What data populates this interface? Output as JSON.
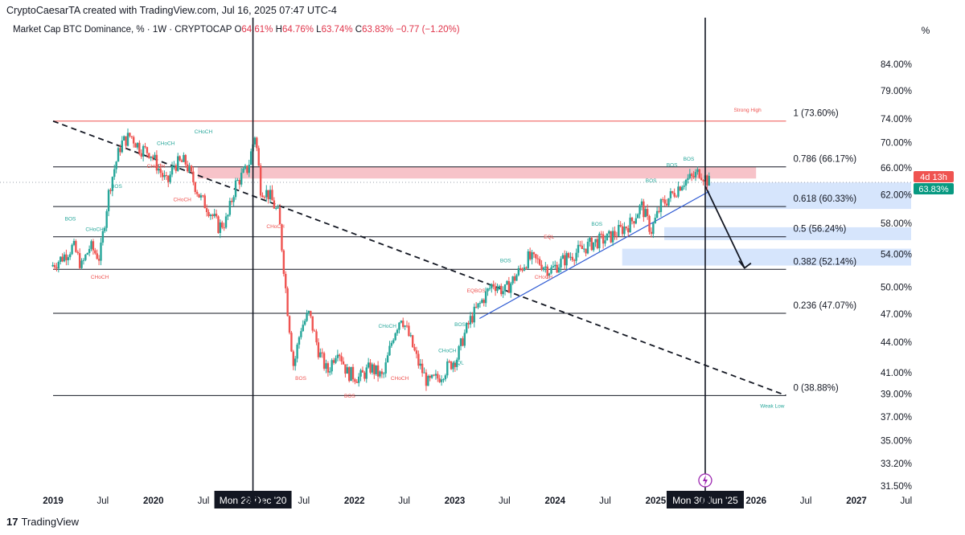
{
  "header": {
    "attribution": "CryptoCaesarTA created with TradingView.com, Jul 16, 2025 07:47 UTC-4",
    "symbol_text": "Market Cap BTC Dominance, % · 1W · CRYPTOCAP",
    "o_label": "O",
    "o_value": "64.61%",
    "h_label": "H",
    "h_value": "64.76%",
    "l_label": "L",
    "l_value": "63.74%",
    "c_label": "C",
    "c_value": "63.83%",
    "change": "−0.77 (−1.20%)",
    "scale_mode": "%"
  },
  "footer": {
    "brand": "TradingView",
    "logo_glyph": "17"
  },
  "colors": {
    "up": "#26a69a",
    "down": "#ef5350",
    "fib": "#131722",
    "strong_high": "#ef5350",
    "zone_red": "#f6b9bf",
    "zone_blue": "#cfe0fb"
  },
  "chart_data": {
    "type": "candlestick",
    "title": "Market Cap BTC Dominance, % · 1W · CRYPTOCAP",
    "y_scale": "log",
    "y_ticks": [
      "84.00%",
      "79.00%",
      "74.00%",
      "70.00%",
      "66.00%",
      "62.00%",
      "58.00%",
      "54.00%",
      "50.00%",
      "47.00%",
      "44.00%",
      "41.00%",
      "39.00%",
      "37.00%",
      "35.00%",
      "33.20%",
      "31.50%"
    ],
    "y_tick_values": [
      84,
      79,
      74,
      70,
      66,
      62,
      58,
      54,
      50,
      47,
      44,
      41,
      39,
      37,
      35,
      33.2,
      31.5
    ],
    "x_ticks": [
      "2019",
      "Jul",
      "2020",
      "Jul",
      "2021",
      "Jul",
      "2022",
      "Jul",
      "2023",
      "Jul",
      "2024",
      "Jul",
      "2025",
      "Jul",
      "2026",
      "Jul",
      "2027",
      "Jul"
    ],
    "x_tick_dates": [
      "2019-01-01",
      "2019-07-01",
      "2020-01-01",
      "2020-07-01",
      "2021-01-01",
      "2021-07-01",
      "2022-01-01",
      "2022-07-01",
      "2023-01-01",
      "2023-07-01",
      "2024-01-01",
      "2024-07-01",
      "2025-01-01",
      "2025-07-01",
      "2026-01-01",
      "2026-07-01",
      "2027-01-01",
      "2027-07-01"
    ],
    "x_tick_bold": [
      true,
      false,
      true,
      false,
      true,
      false,
      true,
      false,
      true,
      false,
      true,
      false,
      true,
      false,
      true,
      false,
      true,
      false
    ],
    "crosshair_labels": [
      {
        "text": "Mon 28 Dec '20",
        "date": "2020-12-28"
      },
      {
        "text": "Mon 30 Jun '25",
        "date": "2025-06-30"
      }
    ],
    "price_labels": {
      "countdown": "4d 13h",
      "last": "63.83%",
      "last_value": 63.83
    },
    "fib_levels": [
      {
        "label": "1 (73.60%)",
        "value": 73.6
      },
      {
        "label": "0.786 (66.17%)",
        "value": 66.17
      },
      {
        "label": "0.618 (60.33%)",
        "value": 60.33
      },
      {
        "label": "0.5 (56.24%)",
        "value": 56.24
      },
      {
        "label": "0.382 (52.14%)",
        "value": 52.14
      },
      {
        "label": "0.236 (47.07%)",
        "value": 47.07
      },
      {
        "label": "0 (38.88%)",
        "value": 38.88
      }
    ],
    "fib_start_date": "2019-01-01",
    "fib_end_date": "2026-04-20",
    "annotations": [
      {
        "text": "Strong High",
        "date": "2025-12-01",
        "value": 75.2,
        "color": "#ef5350"
      },
      {
        "text": "Weak Low",
        "date": "2026-03-01",
        "value": 37.8,
        "color": "#26a69a"
      },
      {
        "text": "BOS",
        "date": "2019-03-05",
        "value": 58.4,
        "color": "#26a69a"
      },
      {
        "text": "CHoCH",
        "date": "2019-06-01",
        "value": 57.0,
        "color": "#26a69a"
      },
      {
        "text": "BOS",
        "date": "2019-08-20",
        "value": 63.0,
        "color": "#26a69a"
      },
      {
        "text": "CHoCH",
        "date": "2019-06-20",
        "value": 51.0,
        "color": "#ef5350"
      },
      {
        "text": "CHoCH",
        "date": "2020-07-01",
        "value": 71.5,
        "color": "#26a69a"
      },
      {
        "text": "CHoCH",
        "date": "2020-02-15",
        "value": 69.6,
        "color": "#26a69a"
      },
      {
        "text": "CHoCH",
        "date": "2020-01-10",
        "value": 66.0,
        "color": "#ef5350"
      },
      {
        "text": "CHoCH",
        "date": "2020-04-15",
        "value": 61.1,
        "color": "#ef5350"
      },
      {
        "text": "CHoCH",
        "date": "2021-03-20",
        "value": 57.4,
        "color": "#ef5350"
      },
      {
        "text": "BOS",
        "date": "2021-06-20",
        "value": 40.3,
        "color": "#ef5350"
      },
      {
        "text": "BOS",
        "date": "2021-12-15",
        "value": 38.7,
        "color": "#ef5350"
      },
      {
        "text": "CHoCH",
        "date": "2022-05-01",
        "value": 45.5,
        "color": "#26a69a"
      },
      {
        "text": "CHoCH",
        "date": "2022-06-15",
        "value": 40.3,
        "color": "#ef5350"
      },
      {
        "text": "CHoCH",
        "date": "2022-12-05",
        "value": 43.0,
        "color": "#26a69a"
      },
      {
        "text": "EQL",
        "date": "2023-01-15",
        "value": 41.8,
        "color": "#26a69a"
      },
      {
        "text": "BOS",
        "date": "2023-01-20",
        "value": 45.7,
        "color": "#26a69a"
      },
      {
        "text": "EQBOS",
        "date": "2023-03-20",
        "value": 49.4,
        "color": "#ef5350"
      },
      {
        "text": "BOS",
        "date": "2023-07-05",
        "value": 53.0,
        "color": "#26a69a"
      },
      {
        "text": "EQL",
        "date": "2023-12-10",
        "value": 56.0,
        "color": "#ef5350"
      },
      {
        "text": "CHoCH",
        "date": "2023-11-20",
        "value": 51.0,
        "color": "#ef5350"
      },
      {
        "text": "BOS",
        "date": "2024-06-01",
        "value": 57.7,
        "color": "#26a69a"
      },
      {
        "text": "BOS",
        "date": "2024-12-15",
        "value": 63.8,
        "color": "#26a69a"
      },
      {
        "text": "BOS",
        "date": "2025-03-01",
        "value": 66.2,
        "color": "#26a69a"
      },
      {
        "text": "BOS",
        "date": "2025-05-01",
        "value": 67.1,
        "color": "#26a69a"
      }
    ],
    "price_path": [
      {
        "date": "2018-12-24",
        "value": 52.5
      },
      {
        "date": "2019-02-01",
        "value": 53.5
      },
      {
        "date": "2019-03-15",
        "value": 55.0
      },
      {
        "date": "2019-04-15",
        "value": 52.5
      },
      {
        "date": "2019-05-15",
        "value": 55.0
      },
      {
        "date": "2019-06-20",
        "value": 53.5
      },
      {
        "date": "2019-07-25",
        "value": 63.0
      },
      {
        "date": "2019-09-05",
        "value": 69.8
      },
      {
        "date": "2019-10-10",
        "value": 71.2
      },
      {
        "date": "2019-11-15",
        "value": 69.0
      },
      {
        "date": "2019-12-20",
        "value": 68.5
      },
      {
        "date": "2020-01-25",
        "value": 65.5
      },
      {
        "date": "2020-02-20",
        "value": 63.5
      },
      {
        "date": "2020-03-15",
        "value": 66.5
      },
      {
        "date": "2020-04-25",
        "value": 67.0
      },
      {
        "date": "2020-05-20",
        "value": 64.5
      },
      {
        "date": "2020-06-20",
        "value": 61.5
      },
      {
        "date": "2020-07-20",
        "value": 60.0
      },
      {
        "date": "2020-08-25",
        "value": 57.5
      },
      {
        "date": "2020-09-25",
        "value": 58.5
      },
      {
        "date": "2020-10-25",
        "value": 63.5
      },
      {
        "date": "2020-12-10",
        "value": 66.0
      },
      {
        "date": "2021-01-05",
        "value": 71.5
      },
      {
        "date": "2021-01-25",
        "value": 63.0
      },
      {
        "date": "2021-02-25",
        "value": 62.0
      },
      {
        "date": "2021-04-01",
        "value": 59.0
      },
      {
        "date": "2021-05-01",
        "value": 48.0
      },
      {
        "date": "2021-05-25",
        "value": 41.5
      },
      {
        "date": "2021-06-20",
        "value": 45.5
      },
      {
        "date": "2021-07-20",
        "value": 47.0
      },
      {
        "date": "2021-08-25",
        "value": 43.0
      },
      {
        "date": "2021-09-25",
        "value": 41.0
      },
      {
        "date": "2021-11-01",
        "value": 43.5
      },
      {
        "date": "2021-12-05",
        "value": 41.0
      },
      {
        "date": "2022-01-20",
        "value": 40.5
      },
      {
        "date": "2022-03-01",
        "value": 41.5
      },
      {
        "date": "2022-04-15",
        "value": 40.5
      },
      {
        "date": "2022-05-25",
        "value": 45.0
      },
      {
        "date": "2022-06-20",
        "value": 46.8
      },
      {
        "date": "2022-07-20",
        "value": 44.5
      },
      {
        "date": "2022-08-20",
        "value": 42.0
      },
      {
        "date": "2022-09-25",
        "value": 40.0
      },
      {
        "date": "2022-11-01",
        "value": 40.5
      },
      {
        "date": "2022-12-05",
        "value": 41.5
      },
      {
        "date": "2023-01-10",
        "value": 42.5
      },
      {
        "date": "2023-02-01",
        "value": 44.5
      },
      {
        "date": "2023-03-01",
        "value": 46.5
      },
      {
        "date": "2023-04-01",
        "value": 48.0
      },
      {
        "date": "2023-05-20",
        "value": 50.5
      },
      {
        "date": "2023-07-01",
        "value": 49.5
      },
      {
        "date": "2023-08-15",
        "value": 51.5
      },
      {
        "date": "2023-09-25",
        "value": 53.5
      },
      {
        "date": "2023-11-05",
        "value": 53.0
      },
      {
        "date": "2023-12-15",
        "value": 52.0
      },
      {
        "date": "2024-02-10",
        "value": 53.5
      },
      {
        "date": "2024-04-01",
        "value": 54.5
      },
      {
        "date": "2024-05-20",
        "value": 55.5
      },
      {
        "date": "2024-07-10",
        "value": 56.0
      },
      {
        "date": "2024-08-20",
        "value": 57.0
      },
      {
        "date": "2024-10-01",
        "value": 58.0
      },
      {
        "date": "2024-11-10",
        "value": 60.5
      },
      {
        "date": "2024-12-15",
        "value": 57.0
      },
      {
        "date": "2025-01-20",
        "value": 60.5
      },
      {
        "date": "2025-03-01",
        "value": 62.0
      },
      {
        "date": "2025-04-10",
        "value": 64.0
      },
      {
        "date": "2025-05-15",
        "value": 64.5
      },
      {
        "date": "2025-06-10",
        "value": 65.5
      },
      {
        "date": "2025-06-30",
        "value": 64.5
      },
      {
        "date": "2025-07-14",
        "value": 63.83
      }
    ]
  }
}
